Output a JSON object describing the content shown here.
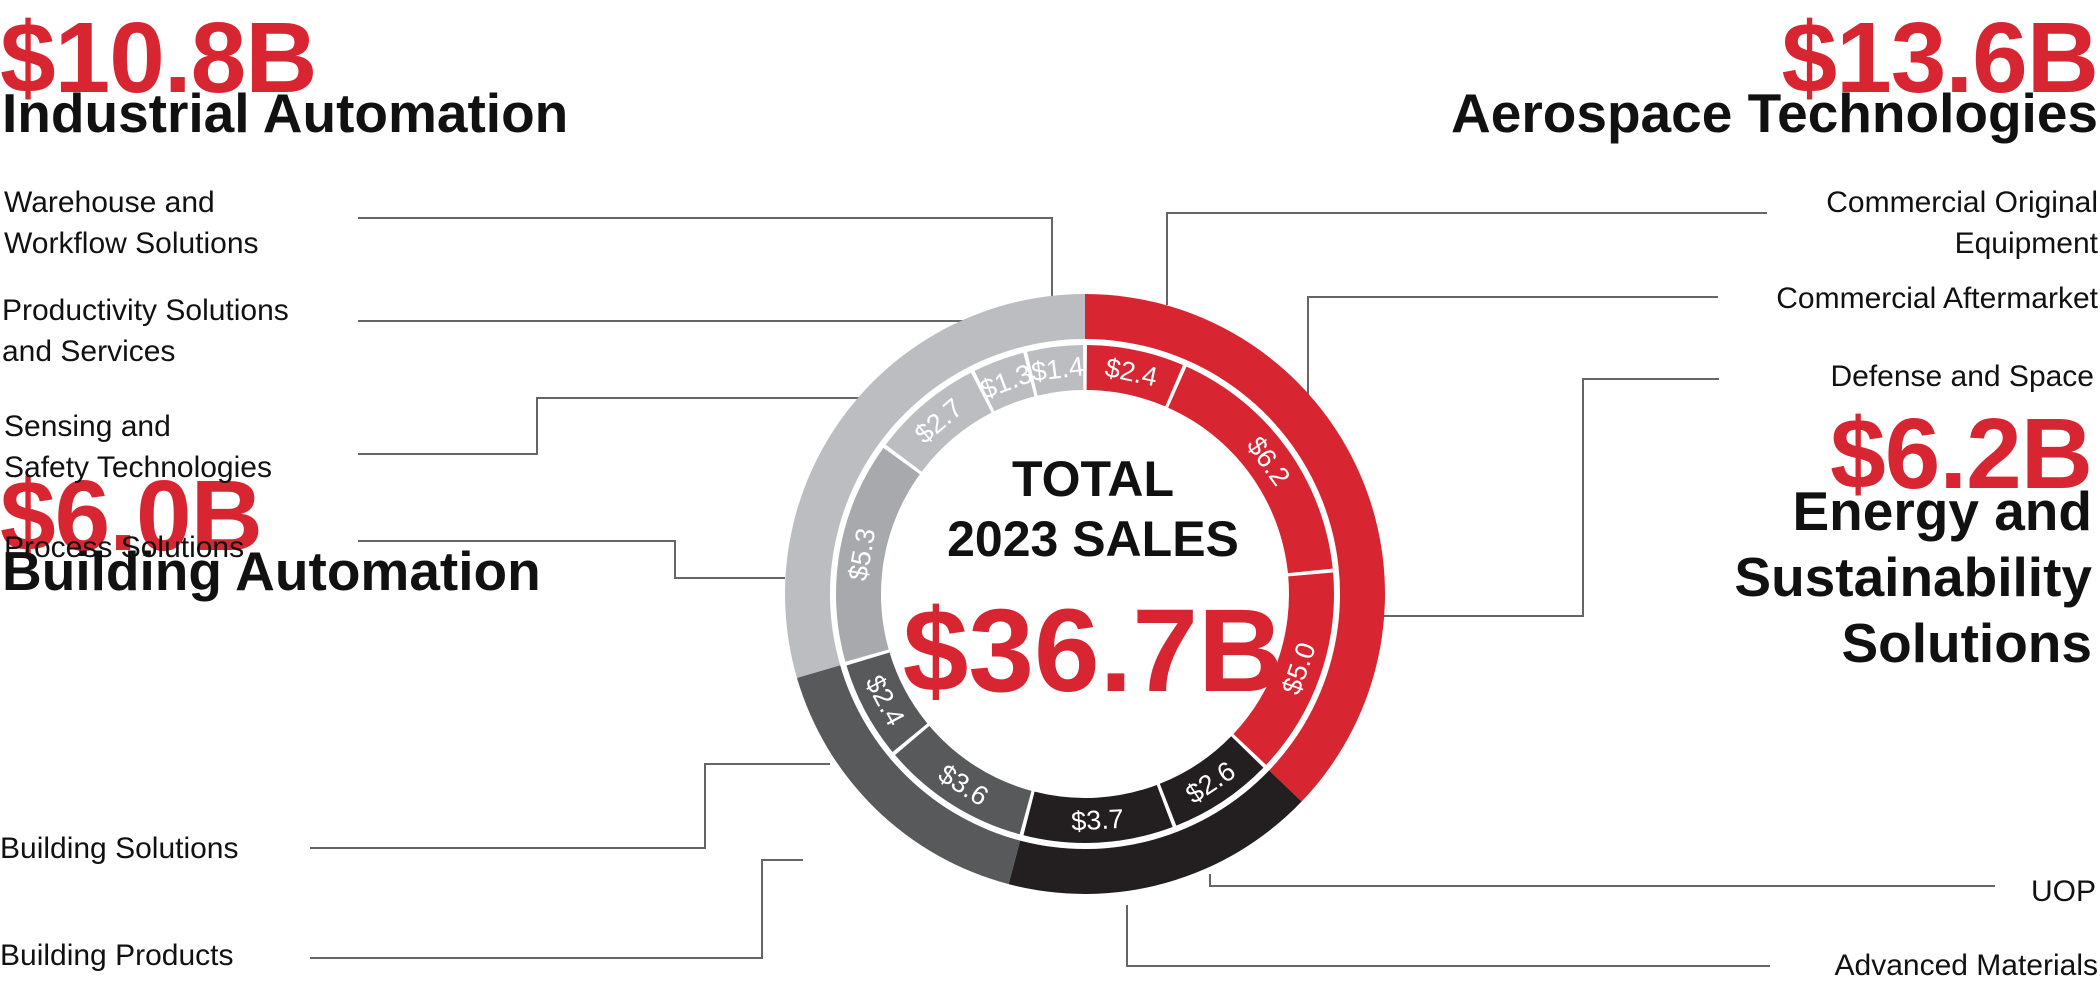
{
  "chart_data": {
    "type": "pie",
    "title": "TOTAL 2023 SALES",
    "total": "$36.7B",
    "segments": [
      {
        "name": "Aerospace Technologies",
        "value": 13.6,
        "label": "$13.6B",
        "color": "#d72631",
        "items": [
          {
            "name": "Commercial Original Equipment",
            "value": 2.4,
            "label": "$2.4"
          },
          {
            "name": "Commercial Aftermarket",
            "value": 6.2,
            "label": "$6.2"
          },
          {
            "name": "Defense and Space",
            "value": 5.0,
            "label": "$5.0"
          }
        ]
      },
      {
        "name": "Energy and Sustainability Solutions",
        "value": 6.2,
        "label": "$6.2B",
        "color": "#231f20",
        "items": [
          {
            "name": "UOP",
            "value": 2.6,
            "label": "$2.6"
          },
          {
            "name": "Advanced Materials",
            "value": 3.7,
            "label": "$3.7"
          }
        ]
      },
      {
        "name": "Building Automation",
        "value": 6.0,
        "label": "$6.0B",
        "color": "#58595b",
        "items": [
          {
            "name": "Building Products",
            "value": 3.6,
            "label": "$3.6"
          },
          {
            "name": "Building Solutions",
            "value": 2.4,
            "label": "$2.4"
          }
        ]
      },
      {
        "name": "Industrial Automation",
        "value": 10.8,
        "label": "$10.8B",
        "color": "#bcbdc0",
        "items": [
          {
            "name": "Process Solutions",
            "value": 5.3,
            "label": "$5.3"
          },
          {
            "name": "Sensing and Safety Technologies",
            "value": 2.7,
            "label": "$2.7"
          },
          {
            "name": "Productivity Solutions and Services",
            "value": 1.3,
            "label": "$1.3"
          },
          {
            "name": "Warehouse and Workflow Solutions",
            "value": 1.4,
            "label": "$1.4"
          }
        ]
      }
    ]
  },
  "headings": {
    "ia_value": "$10.8B",
    "ia_name": "Industrial Automation",
    "at_value": "$13.6B",
    "at_name": "Aerospace Technologies",
    "ess_value": "$6.2B",
    "ess_line1": "Energy and",
    "ess_line2": "Sustainability",
    "ess_line3": "Solutions",
    "ba_value": "$6.0B",
    "ba_name": "Building Automation"
  },
  "labels": {
    "wws_1": "Warehouse and",
    "wws_2": "Workflow Solutions",
    "pss_1": "Productivity Solutions",
    "pss_2": "and Services",
    "sst_1": "Sensing and",
    "sst_2": "Safety Technologies",
    "ps": "Process Solutions",
    "bs": "Building Solutions",
    "bp": "Building Products",
    "coe_1": "Commercial Original",
    "coe_2": "Equipment",
    "ca": "Commercial Aftermarket",
    "ds": "Defense and Space",
    "uop": "UOP",
    "am": "Advanced Materials"
  },
  "center": {
    "line1": "TOTAL",
    "line2": "2023 SALES",
    "total": "$36.7B"
  },
  "colors": {
    "accent_red": "#d72631",
    "black": "#231f20",
    "dark_gray": "#58595b",
    "light_gray": "#bcbdc0",
    "inner_light_gray": "#a7a9ac",
    "text": "#111111",
    "leader": "#666666"
  }
}
